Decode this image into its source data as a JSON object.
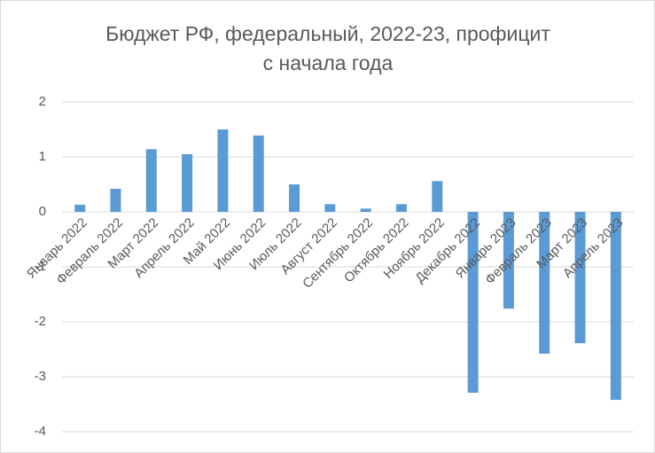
{
  "chart_data": {
    "type": "bar",
    "title": [
      "Бюджет РФ, федеральный, 2022-23,  профицит",
      "с начала года"
    ],
    "categories": [
      "Январь 2022",
      "Февраль 2022",
      "Март 2022",
      "Апрель 2022",
      "Май 2022",
      "Июнь 2022",
      "Июль 2022",
      "Август 2022",
      "Сентябрь 2022",
      "Октябрь 2022",
      "Ноябрь 2022",
      "Декабрь 2022",
      "Январь 2023",
      "Февраль 2023",
      "Март 2023",
      "Апрель 2023"
    ],
    "values": [
      0.13,
      0.42,
      1.14,
      1.05,
      1.5,
      1.39,
      0.5,
      0.14,
      0.06,
      0.14,
      0.56,
      -3.29,
      -1.76,
      -2.58,
      -2.39,
      -3.42
    ],
    "color": "#5b9bd5",
    "ylim": [
      -4,
      2
    ],
    "yticks": [
      -4,
      -3,
      -2,
      -1,
      0,
      1,
      2
    ],
    "grid": true
  }
}
